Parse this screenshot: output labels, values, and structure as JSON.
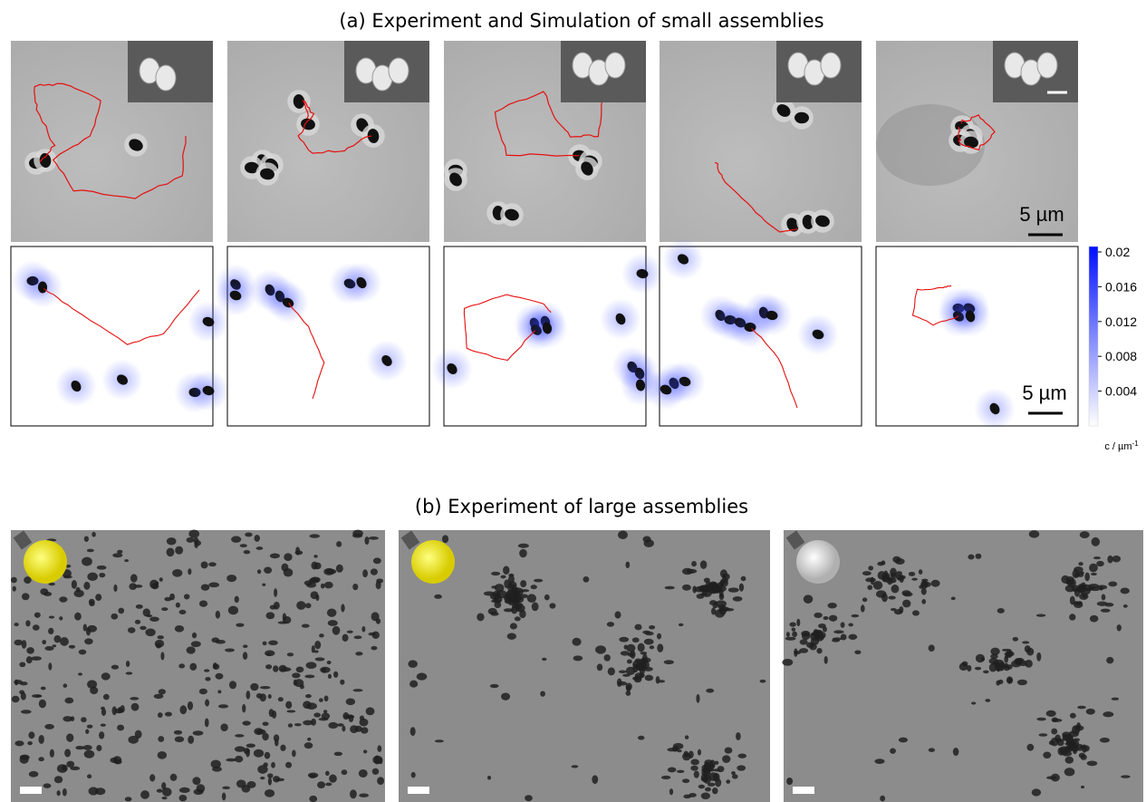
{
  "panel_a": {
    "title": "(a)  Experiment and Simulation of small assemblies",
    "scale_bar_experiment": "5 µm",
    "scale_bar_simulation": "5 µm",
    "colorbar": {
      "range": [
        0,
        0.02
      ],
      "ticks": [
        0.02,
        0.016,
        0.012,
        0.008,
        0.004
      ],
      "label": "c / µm",
      "label_superscript": "-1"
    }
  },
  "panel_b": {
    "title": "(b)  Experiment of large assemblies"
  }
}
